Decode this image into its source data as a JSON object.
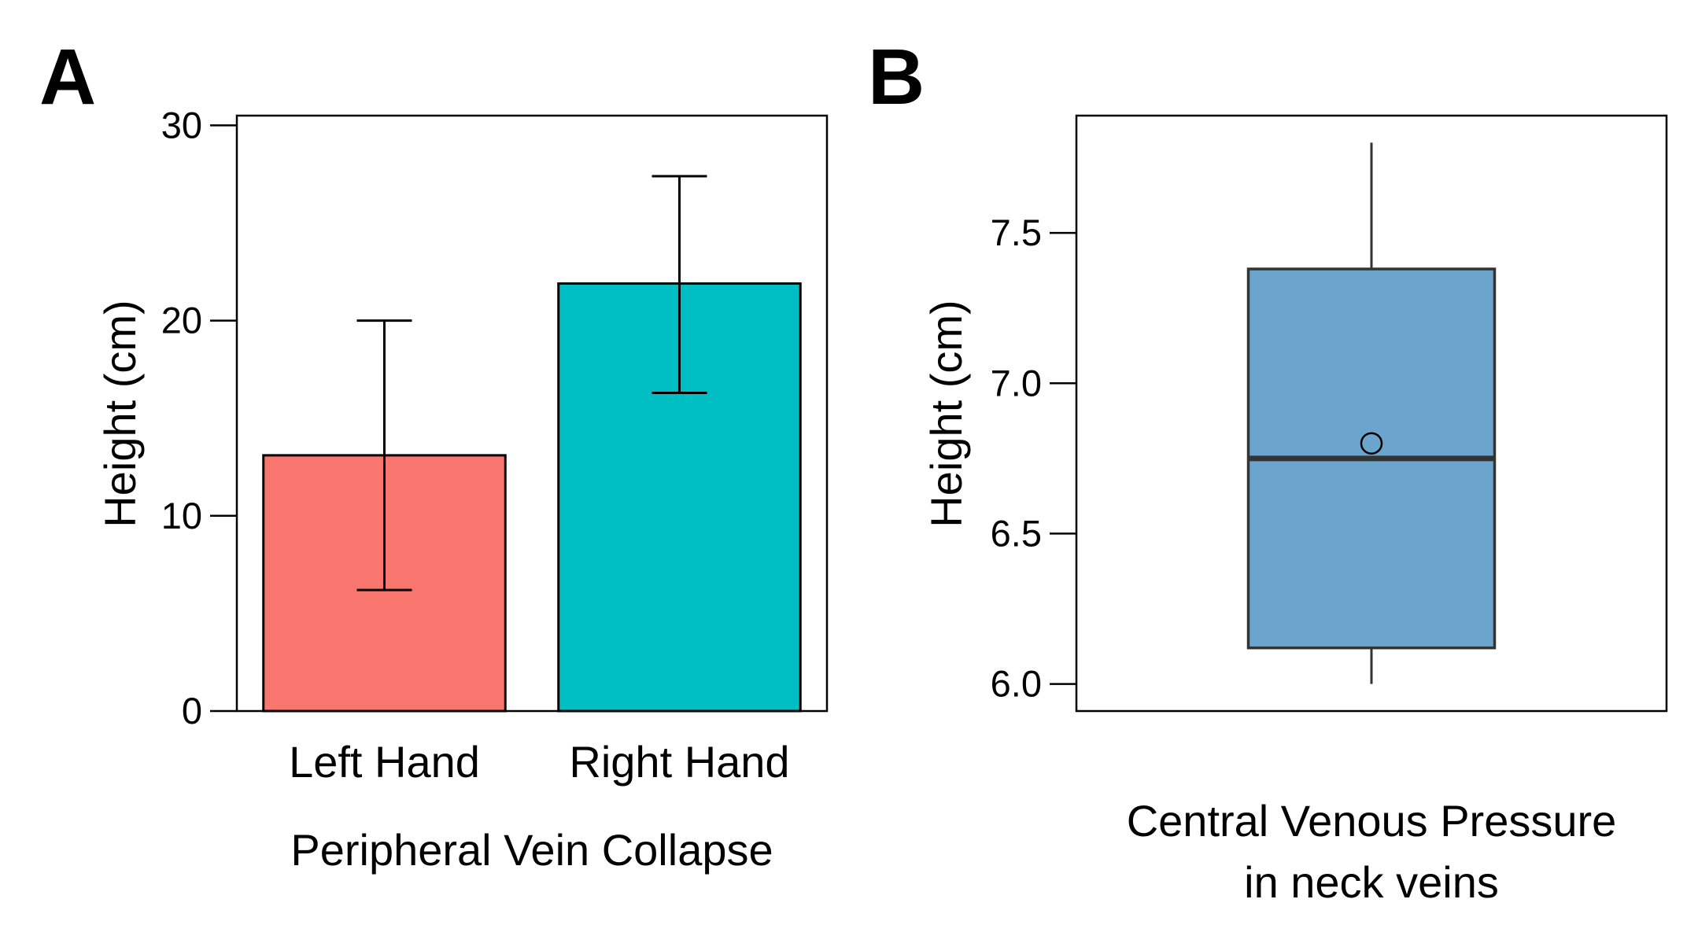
{
  "colors": {
    "left_bar": "#F8766D",
    "right_bar": "#00BFC4",
    "box_fill": "#6BA4CC",
    "box_stroke": "#333333"
  },
  "chart_data": [
    {
      "panel": "A",
      "type": "bar",
      "categories": [
        "Left Hand",
        "Right Hand"
      ],
      "values": [
        13.1,
        21.9
      ],
      "error_low": [
        6.2,
        16.3
      ],
      "error_high": [
        20.0,
        27.4
      ],
      "xlabel": "Peripheral Vein Collapse",
      "ylabel": "Height (cm)",
      "yticks": [
        0,
        10,
        20,
        30
      ],
      "ylim": [
        0,
        30.5
      ],
      "grid": false,
      "legend": "none"
    },
    {
      "panel": "B",
      "type": "box",
      "categories": [
        ""
      ],
      "box": {
        "min": 6.0,
        "q1": 6.12,
        "median": 6.75,
        "q3": 7.38,
        "max": 7.8,
        "mean": 6.8
      },
      "xlabel_lines": [
        "Central Venous Pressure",
        "in neck veins"
      ],
      "ylabel": "Height (cm)",
      "yticks": [
        "6.0",
        "6.5",
        "7.0",
        "7.5"
      ],
      "ylim": [
        5.91,
        7.89
      ],
      "grid": false,
      "legend": "none"
    }
  ]
}
